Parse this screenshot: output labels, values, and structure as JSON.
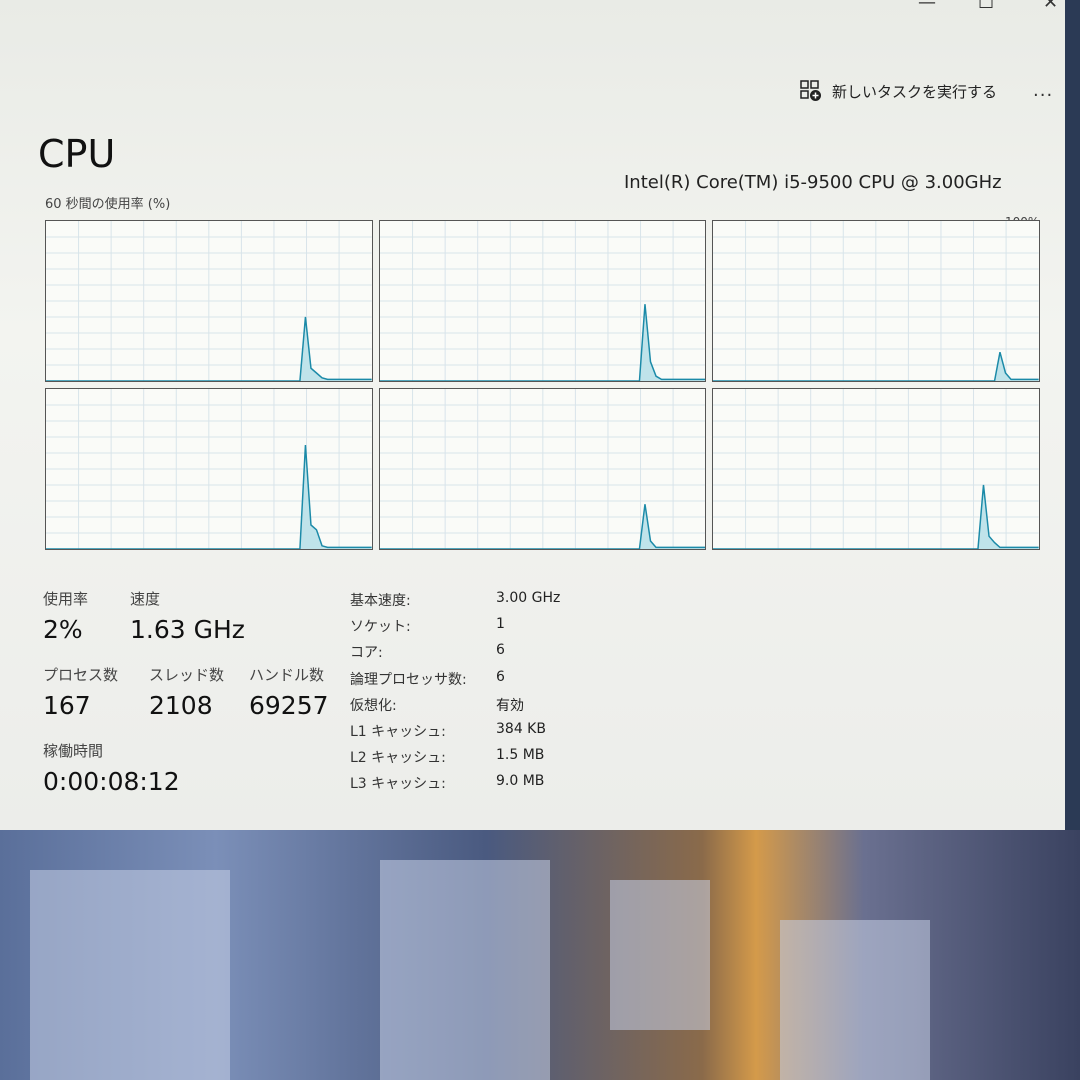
{
  "window": {
    "minimize": "—",
    "maximize": "☐",
    "close": "✕"
  },
  "toolbar": {
    "run_task_label": "新しいタスクを実行する",
    "run_task_icon": "new-task-icon",
    "more_label": "..."
  },
  "page": {
    "title": "CPU",
    "model": "Intel(R) Core(TM) i5-9500 CPU @ 3.00GHz",
    "graph_label": "60 秒間の使用率 (%)",
    "graph_max": "100%"
  },
  "graphs": {
    "line_color": "#1b8aa8",
    "fill_color": "#bfe3ea",
    "grid_color": "#d8e4ea",
    "cores": [
      {
        "spikes": [
          [
            47,
            40
          ],
          [
            48,
            8
          ],
          [
            49,
            5
          ],
          [
            50,
            2
          ]
        ]
      },
      {
        "spikes": [
          [
            48,
            48
          ],
          [
            49,
            12
          ],
          [
            50,
            3
          ]
        ]
      },
      {
        "spikes": [
          [
            52,
            18
          ],
          [
            53,
            5
          ]
        ]
      },
      {
        "spikes": [
          [
            47,
            65
          ],
          [
            48,
            15
          ],
          [
            49,
            12
          ],
          [
            50,
            2
          ]
        ]
      },
      {
        "spikes": [
          [
            48,
            28
          ],
          [
            49,
            5
          ]
        ]
      },
      {
        "spikes": [
          [
            49,
            40
          ],
          [
            50,
            8
          ],
          [
            51,
            4
          ]
        ]
      }
    ]
  },
  "stats": {
    "usage_label": "使用率",
    "usage_value": "2%",
    "speed_label": "速度",
    "speed_value": "1.63 GHz",
    "processes_label": "プロセス数",
    "processes_value": "167",
    "threads_label": "スレッド数",
    "threads_value": "2108",
    "handles_label": "ハンドル数",
    "handles_value": "69257",
    "uptime_label": "稼働時間",
    "uptime_value": "0:00:08:12"
  },
  "details": [
    {
      "label": "基本速度:",
      "value": "3.00 GHz"
    },
    {
      "label": "ソケット:",
      "value": "1"
    },
    {
      "label": "コア:",
      "value": "6"
    },
    {
      "label": "論理プロセッサ数:",
      "value": "6"
    },
    {
      "label": "仮想化:",
      "value": "有効"
    },
    {
      "label": "L1 キャッシュ:",
      "value": "384 KB"
    },
    {
      "label": "L2 キャッシュ:",
      "value": "1.5 MB"
    },
    {
      "label": "L3 キャッシュ:",
      "value": "9.0 MB"
    }
  ]
}
